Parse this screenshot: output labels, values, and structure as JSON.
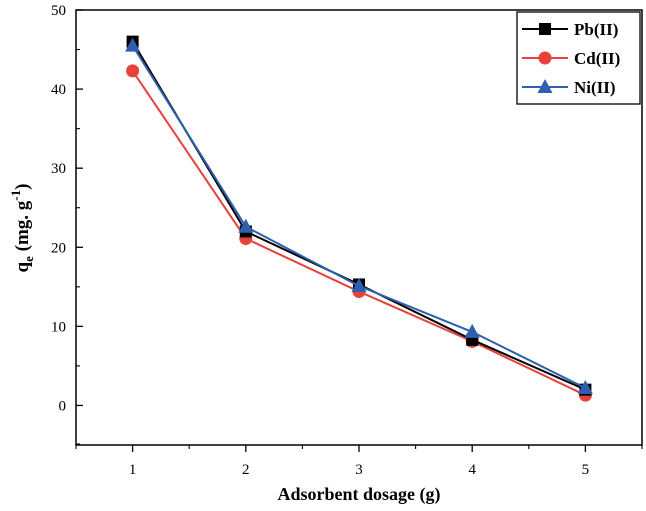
{
  "chart_data": {
    "type": "line",
    "title": "",
    "xlabel": "Adsorbent dosage (g)",
    "ylabel": {
      "q": "q",
      "sub": "e",
      "main": " (mg. g",
      "sup": "-1",
      "close": ")"
    },
    "xlim": [
      0.5,
      5.5
    ],
    "ylim": [
      -5,
      50
    ],
    "xticks": [
      1,
      2,
      3,
      4,
      5
    ],
    "yticks": [
      0,
      10,
      20,
      30,
      40,
      50
    ],
    "x": [
      1,
      2,
      3,
      4,
      5
    ],
    "legend_position": "top-right",
    "series": [
      {
        "name": "Pb(II)",
        "values": [
          46.0,
          22.0,
          15.3,
          8.3,
          2.0
        ],
        "color": "#000000",
        "marker": "square"
      },
      {
        "name": "Cd(II)",
        "values": [
          42.3,
          21.1,
          14.4,
          8.1,
          1.3
        ],
        "color": "#e8413c",
        "marker": "circle"
      },
      {
        "name": "Ni(II)",
        "values": [
          45.5,
          22.6,
          15.1,
          9.3,
          2.2
        ],
        "color": "#2e5fae",
        "marker": "triangle"
      }
    ]
  }
}
